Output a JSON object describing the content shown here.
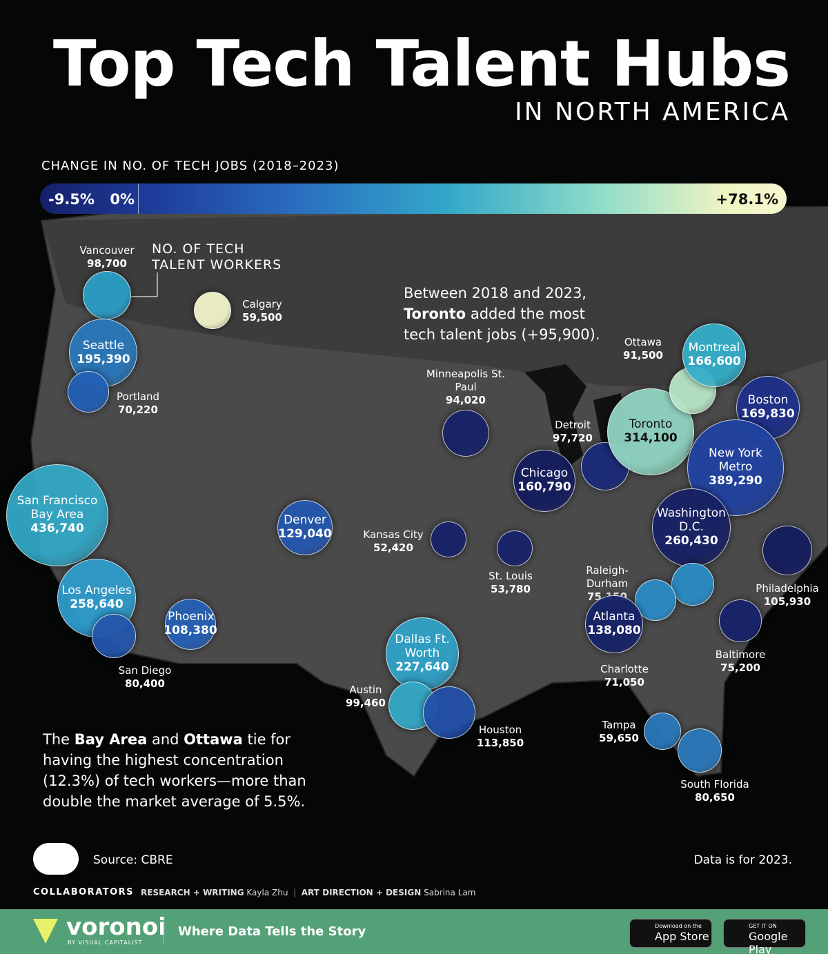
{
  "header": {
    "title": "Top Tech Talent Hubs",
    "subtitle": "IN NORTH AMERICA"
  },
  "chart_data": {
    "type": "bubble-map",
    "size_label": "NO. OF TECH TALENT WORKERS",
    "colorbar": {
      "title": "CHANGE IN NO. OF TECH JOBS (2018–2023)",
      "lim": [
        -9.5,
        78.1
      ],
      "ticks": [
        {
          "value": -9.5,
          "label": "-9.5%"
        },
        {
          "value": 0,
          "label": "0%"
        },
        {
          "value": 78.1,
          "label": "+78.1%"
        }
      ]
    },
    "categories": [
      "Vancouver",
      "Seattle",
      "Portland",
      "Calgary",
      "San Francisco Bay Area",
      "Los Angeles",
      "San Diego",
      "Phoenix",
      "Denver",
      "Kansas City",
      "St. Louis",
      "Minneapolis St. Paul",
      "Chicago",
      "Detroit",
      "Toronto",
      "Ottawa",
      "Montreal",
      "Boston",
      "New York Metro",
      "Washington D.C.",
      "Philadelphia",
      "Baltimore",
      "Raleigh-Durham",
      "Charlotte",
      "Atlanta",
      "Dallas Ft. Worth",
      "Austin",
      "Houston",
      "Tampa",
      "South Florida"
    ],
    "values": [
      98700,
      195390,
      70220,
      59500,
      436740,
      258640,
      80400,
      108380,
      129040,
      52420,
      53780,
      94020,
      160790,
      97720,
      314100,
      91500,
      166600,
      169830,
      389290,
      260430,
      105930,
      75200,
      75150,
      71050,
      138080,
      227640,
      99460,
      113850,
      59650,
      80650
    ],
    "value_labels": [
      "98,700",
      "195,390",
      "70,220",
      "59,500",
      "436,740",
      "258,640",
      "80,400",
      "108,380",
      "129,040",
      "52,420",
      "53,780",
      "94,020",
      "160,790",
      "97,720",
      "314,100",
      "91,500",
      "166,600",
      "169,830",
      "389,290",
      "260,430",
      "105,930",
      "75,200",
      "75,150",
      "71,050",
      "138,080",
      "227,640",
      "99,460",
      "113,850",
      "59,650",
      "80,650"
    ],
    "colors": [
      "#2b9dc6",
      "#2a78bb",
      "#2360b4",
      "#f3f4cc",
      "#33a8c6",
      "#2f9ccb",
      "#2356ab",
      "#2661b4",
      "#2557ad",
      "#17216a",
      "#17216a",
      "#172269",
      "#141c5e",
      "#1a2a78",
      "#8fd4c0",
      "#b7e4c4",
      "#35aec9",
      "#1d2f8a",
      "#2042a0",
      "#172064",
      "#141c5e",
      "#17216a",
      "#2a8cc6",
      "#2a8cc6",
      "#172269",
      "#30a2c8",
      "#33a8c6",
      "#2250a8",
      "#2a78bb",
      "#2a78bb"
    ]
  },
  "annotations": [
    {
      "parts": [
        "Between 2018 and 2023, ",
        "Toronto",
        " added the most tech talent jobs (+95,900)."
      ]
    },
    {
      "parts": [
        "The ",
        "Bay Area",
        " and ",
        "Ottawa",
        " tie for having the highest concentration (12.3%) of tech workers—more than double the market average of 5.5%."
      ]
    }
  ],
  "footer": {
    "source": "Source: CBRE",
    "note": "Data is for 2023.",
    "collaborators": "COLLABORATORS",
    "credits": [
      {
        "role": "RESEARCH + WRITING",
        "name": "Kayla Zhu"
      },
      {
        "role": "ART DIRECTION + DESIGN",
        "name": "Sabrina Lam"
      }
    ],
    "brand": "voronoi",
    "brand_sub": "BY VISUAL CAPITALIST",
    "tagline": "Where Data Tells the Story",
    "apps": [
      {
        "small": "Download on the",
        "big": "App Store"
      },
      {
        "small": "GET IT ON",
        "big": "Google Play"
      }
    ]
  }
}
